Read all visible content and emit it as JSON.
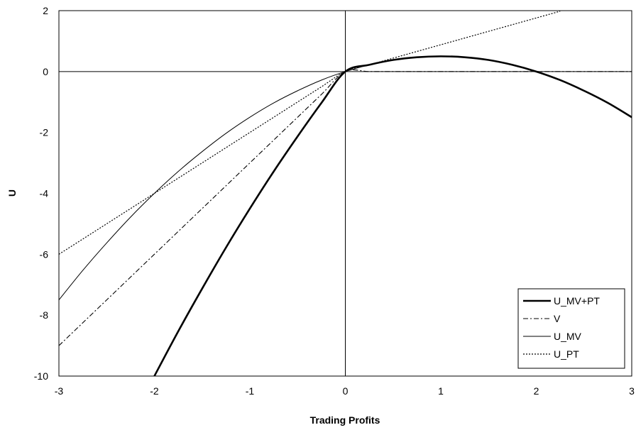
{
  "chart_data": {
    "type": "line",
    "title": "",
    "xlabel": "Trading Profits",
    "ylabel": "U",
    "xlim": [
      -3,
      3
    ],
    "ylim": [
      -10,
      2
    ],
    "xticks": [
      "-3",
      "-2",
      "-1",
      "0",
      "1",
      "2",
      "3"
    ],
    "yticks": [
      "2",
      "0",
      "-2",
      "-4",
      "-6",
      "-8",
      "-10"
    ],
    "grid": false,
    "legend_position": "bottom-right",
    "x": [
      -3.0,
      -2.75,
      -2.5,
      -2.25,
      -2.0,
      -1.75,
      -1.5,
      -1.25,
      -1.0,
      -0.75,
      -0.5,
      -0.25,
      0.0,
      0.25,
      0.5,
      0.75,
      1.0,
      1.25,
      1.5,
      1.75,
      2.0,
      2.25,
      2.5,
      2.75,
      3.0
    ],
    "series": [
      {
        "name": "U_MV+PT",
        "style": "solid-thick",
        "values": [
          null,
          null,
          null,
          null,
          -10.0,
          -8.53,
          -7.13,
          -5.78,
          -4.5,
          -3.28,
          -2.13,
          -1.03,
          0.0,
          0.22,
          0.38,
          0.47,
          0.5,
          0.47,
          0.38,
          0.22,
          0.0,
          -0.28,
          -0.63,
          -1.03,
          -1.5
        ]
      },
      {
        "name": "V",
        "style": "dash-dot",
        "values": [
          -9.0,
          -8.25,
          -7.5,
          -6.75,
          -6.0,
          -5.25,
          -4.5,
          -3.75,
          -3.0,
          -2.25,
          -1.5,
          -0.75,
          0.0,
          0.0,
          0.0,
          0.0,
          0.0,
          0.0,
          0.0,
          0.0,
          0.0,
          0.0,
          0.0,
          0.0,
          0.0
        ]
      },
      {
        "name": "U_MV",
        "style": "solid-thin",
        "values": [
          -7.5,
          -6.53,
          -5.63,
          -4.78,
          -4.0,
          -3.28,
          -2.63,
          -2.03,
          -1.5,
          -1.03,
          -0.63,
          -0.28,
          0.0,
          0.22,
          0.38,
          0.47,
          0.5,
          0.47,
          0.38,
          0.22,
          0.0,
          -0.28,
          -0.63,
          -1.03,
          -1.5
        ]
      },
      {
        "name": "U_PT",
        "style": "dotted",
        "values": [
          -6.0,
          -5.5,
          -5.0,
          -4.5,
          -4.0,
          -3.5,
          -3.0,
          -2.5,
          -2.0,
          -1.5,
          -1.0,
          -0.5,
          0.0,
          0.22,
          0.44,
          0.66,
          0.88,
          1.1,
          1.32,
          1.54,
          1.76,
          1.98,
          null,
          null,
          null
        ]
      }
    ]
  }
}
